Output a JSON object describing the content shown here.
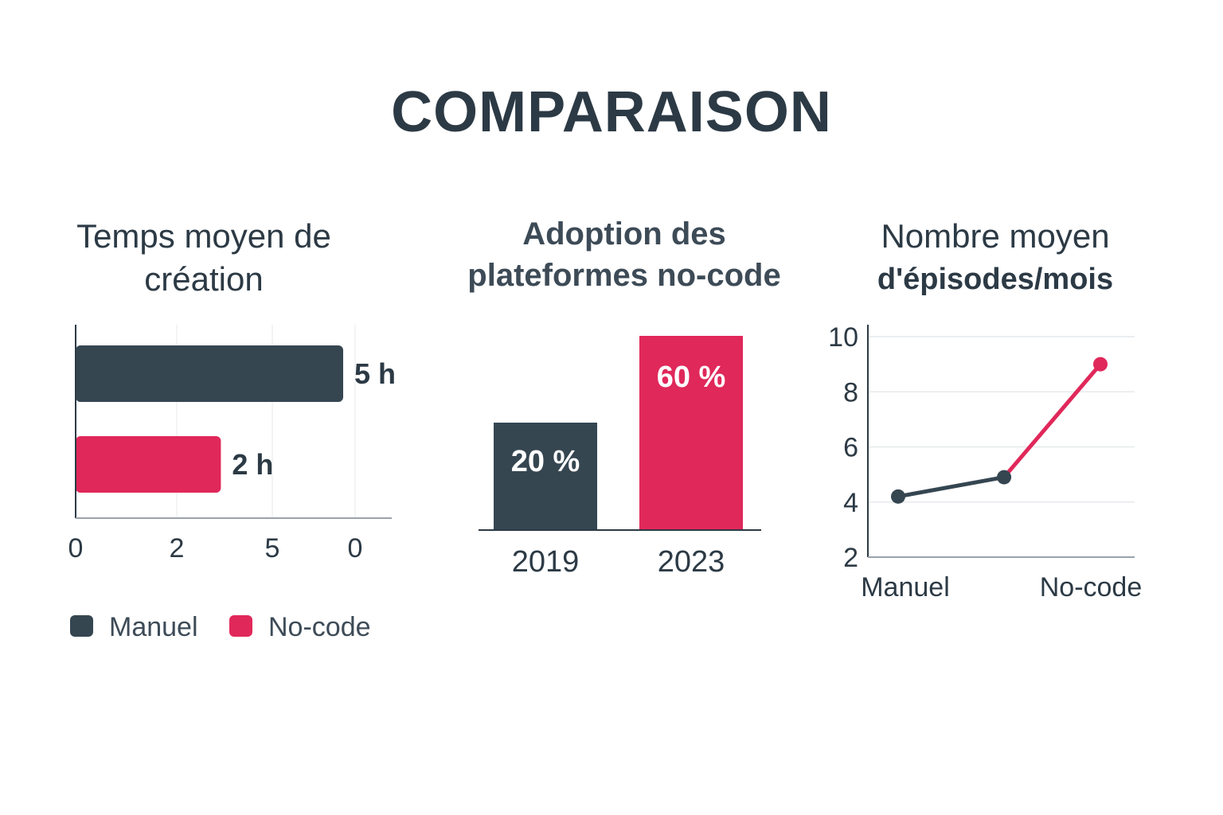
{
  "page": {
    "title": "COMPARAISON"
  },
  "colors": {
    "manual": "#354651",
    "nocode": "#e0285a",
    "text": "#2c3a45",
    "grid": "#e6e9ec",
    "axis": "#2c3a45"
  },
  "chart_data": [
    {
      "type": "bar",
      "orientation": "horizontal",
      "title_lines": [
        "Temps moyen de",
        "création"
      ],
      "categories": [
        "Manuel",
        "No-code"
      ],
      "values": [
        5,
        2
      ],
      "value_labels": [
        "5 h",
        "2 h"
      ],
      "unit": "h",
      "xlim": [
        0,
        6
      ],
      "x_tick_labels": [
        "0",
        "2",
        "5",
        "0"
      ],
      "grid": true,
      "legend": {
        "position": "bottom",
        "items": [
          "Manuel",
          "No-code"
        ]
      }
    },
    {
      "type": "bar",
      "orientation": "vertical",
      "title_lines": [
        "Adoption des",
        "plateformes no-code"
      ],
      "categories": [
        "2019",
        "2023"
      ],
      "values": [
        20,
        60
      ],
      "value_labels": [
        "20 %",
        "60 %"
      ],
      "unit": "%",
      "ylim": [
        0,
        60
      ]
    },
    {
      "type": "line",
      "title_lines": [
        "Nombre moyen",
        "d'épisodes/mois"
      ],
      "x_labels": [
        "Manuel",
        "No-code"
      ],
      "points": [
        {
          "x": 0,
          "y": 4.2,
          "series": "Manuel"
        },
        {
          "x": 1.1,
          "y": 4.9,
          "series": "Manuel"
        },
        {
          "x": 2.1,
          "y": 9.0,
          "series": "No-code"
        }
      ],
      "xlim": [
        0,
        2.5
      ],
      "ylim": [
        2,
        10
      ],
      "y_ticks": [
        2,
        4,
        6,
        8,
        10
      ],
      "grid": true
    }
  ]
}
